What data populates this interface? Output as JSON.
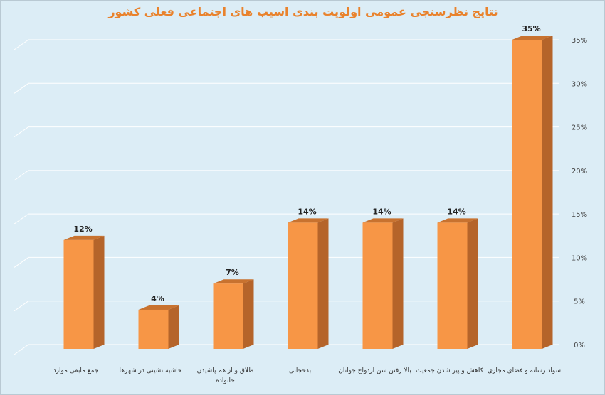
{
  "chart_data": {
    "type": "bar",
    "title": "نتایج نظرسنجی عمومی اولویت بندی اسیب های اجتماعی فعلی کشور",
    "categories": [
      "جمع مابقی موارد",
      "حاشیه نشینی در شهرها",
      "طلاق و از هم پاشیدن خانواده",
      "بدحجابی",
      "بالا رفتن سن ازدواج جوانان",
      "کاهش و پیر شدن جمعیت",
      "سواد رسانه و فضای مجازی"
    ],
    "category_lines": [
      [
        "جمع مابقی موارد"
      ],
      [
        "حاشیه نشینی در شهرها"
      ],
      [
        "طلاق و از هم پاشیدن",
        "خانواده"
      ],
      [
        "بدحجابی"
      ],
      [
        "بالا رفتن سن ازدواج جوانان"
      ],
      [
        "کاهش و پیر شدن جمعیت"
      ],
      [
        "سواد رسانه و فضای مجازی"
      ]
    ],
    "values": [
      12,
      4,
      7,
      14,
      14,
      14,
      35
    ],
    "data_labels": [
      "12%",
      "4%",
      "7%",
      "14%",
      "14%",
      "14%",
      "35%"
    ],
    "ylim": [
      0,
      35
    ],
    "yticks": [
      0,
      5,
      10,
      15,
      20,
      25,
      30,
      35
    ],
    "ytick_labels": [
      "0%",
      "5%",
      "10%",
      "15%",
      "20%",
      "25%",
      "30%",
      "35%"
    ],
    "y_axis_side": "right",
    "grid": true,
    "xlabel": "",
    "ylabel": "",
    "colors": {
      "bar_front": "#f79646",
      "bar_side": "#b5642a",
      "bar_top": "#c8722f",
      "grid": "#ffffff",
      "title": "#e9822c"
    }
  }
}
